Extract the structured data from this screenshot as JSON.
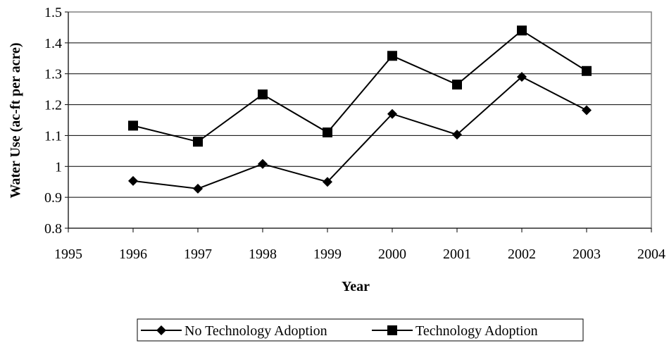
{
  "chart_data": {
    "type": "line",
    "xlabel": "Year",
    "ylabel": "Water Use (ac-ft per acre)",
    "x": [
      1996,
      1997,
      1998,
      1999,
      2000,
      2001,
      2002,
      2003
    ],
    "series": [
      {
        "name": "No Technology Adoption",
        "color": "#000000",
        "marker": "diamond",
        "values": [
          0.953,
          0.928,
          1.008,
          0.95,
          1.17,
          1.103,
          1.29,
          1.182
        ]
      },
      {
        "name": "Technology Adoption",
        "color": "#000000",
        "marker": "square",
        "values": [
          1.132,
          1.08,
          1.233,
          1.11,
          1.358,
          1.265,
          1.44,
          1.309
        ]
      }
    ],
    "xlim": [
      1995,
      2004
    ],
    "xticks": [
      1995,
      1996,
      1997,
      1998,
      1999,
      2000,
      2001,
      2002,
      2003,
      2004
    ],
    "ylim": [
      0.8,
      1.5
    ],
    "yticks": [
      0.8,
      0.9,
      1,
      1.1,
      1.2,
      1.3,
      1.4,
      1.5
    ],
    "grid": true,
    "legend": "bottom"
  }
}
